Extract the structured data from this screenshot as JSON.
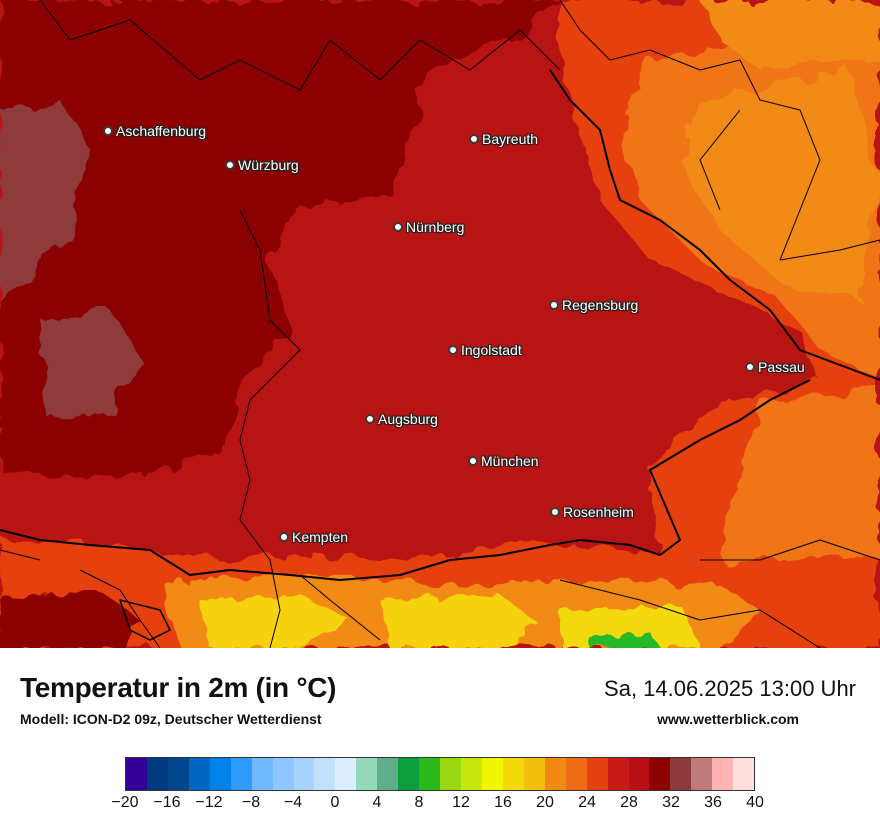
{
  "map": {
    "cities": [
      {
        "name": "Aschaffenburg"
      },
      {
        "name": "Würzburg"
      },
      {
        "name": "Bayreuth"
      },
      {
        "name": "Nürnberg"
      },
      {
        "name": "Regensburg"
      },
      {
        "name": "Ingolstadt"
      },
      {
        "name": "Passau"
      },
      {
        "name": "Augsburg"
      },
      {
        "name": "München"
      },
      {
        "name": "Rosenheim"
      },
      {
        "name": "Kempten"
      }
    ],
    "colors": {
      "very_hot": "#8b0000",
      "hot": "#b71413",
      "warm": "#e5400f",
      "warm_orange": "#f07512",
      "orange": "#f28b14",
      "yellow": "#f5d20a",
      "green": "#28b828",
      "mauve": "#8f3a3a",
      "border": "#000000"
    }
  },
  "footer": {
    "title": "Temperatur in 2m (in °C)",
    "subtitle": "Modell: ICON-D2 09z, Deutscher Wetterdienst",
    "datetime": "Sa, 14.06.2025 13:00 Uhr",
    "website": "www.wetterblick.com"
  },
  "legend": {
    "colors": [
      "#330099",
      "#003b82",
      "#00468c",
      "#0066c4",
      "#0082e8",
      "#2f9bff",
      "#73b9ff",
      "#8fc6ff",
      "#a8d3ff",
      "#c3e1ff",
      "#dcedff",
      "#93d8b8",
      "#5fae8b",
      "#0a9e3c",
      "#2bb91a",
      "#9bd814",
      "#c6e80c",
      "#f0f500",
      "#f3d90a",
      "#f2bf0e",
      "#f28a12",
      "#f06c14",
      "#e5400f",
      "#c91a17",
      "#b51014",
      "#8b0000",
      "#8f3a3a",
      "#c07a7a",
      "#ffb3b3",
      "#ffe0e0"
    ],
    "ticks": [
      "−20",
      "−16",
      "−12",
      "−8",
      "−4",
      "0",
      "4",
      "8",
      "12",
      "16",
      "20",
      "24",
      "28",
      "32",
      "36",
      "40"
    ]
  }
}
